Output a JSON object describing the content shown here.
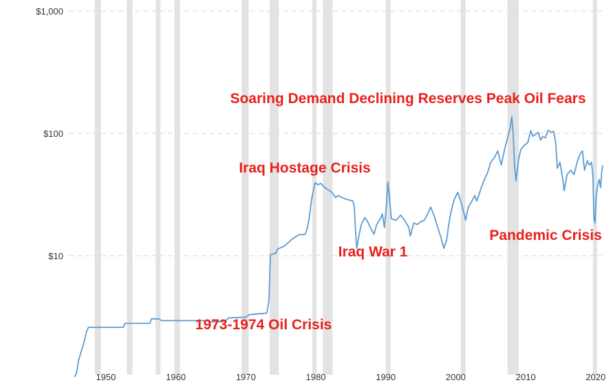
{
  "chart_data": {
    "type": "line",
    "title": "",
    "xlabel": "",
    "ylabel": "",
    "y_scale": "log",
    "ylim": [
      1,
      1000
    ],
    "xlim": [
      1945,
      2020
    ],
    "grid": true,
    "y_ticks": [
      {
        "value": 10,
        "label": "$10"
      },
      {
        "value": 100,
        "label": "$100"
      },
      {
        "value": 1000,
        "label": "$1,000"
      }
    ],
    "x_ticks": [
      1950,
      1960,
      1970,
      1980,
      1990,
      2000,
      2010,
      2020
    ],
    "colors": {
      "line": "#5b9bd5",
      "recession": "#e3e3e3",
      "annotation": "#e8201b",
      "grid": "#dddddd"
    },
    "recessions": [
      [
        1948.9,
        1949.8
      ],
      [
        1953.5,
        1954.3
      ],
      [
        1957.6,
        1958.3
      ],
      [
        1960.3,
        1961.1
      ],
      [
        1969.9,
        1970.9
      ],
      [
        1973.9,
        1975.2
      ],
      [
        1980.0,
        1980.5
      ],
      [
        1981.5,
        1982.9
      ],
      [
        1990.5,
        1991.2
      ],
      [
        2001.2,
        2001.9
      ],
      [
        2007.9,
        2009.5
      ],
      [
        2020.1,
        2020.6
      ]
    ],
    "series": [
      {
        "points": [
          [
            1946.0,
            1.02
          ],
          [
            1946.3,
            1.1
          ],
          [
            1946.6,
            1.4
          ],
          [
            1946.9,
            1.6
          ],
          [
            1947.3,
            1.9
          ],
          [
            1947.7,
            2.35
          ],
          [
            1948.0,
            2.6
          ],
          [
            1953.0,
            2.6
          ],
          [
            1953.2,
            2.8
          ],
          [
            1956.8,
            2.8
          ],
          [
            1957.0,
            3.05
          ],
          [
            1958.0,
            3.05
          ],
          [
            1958.5,
            2.95
          ],
          [
            1965.0,
            2.95
          ],
          [
            1965.5,
            2.88
          ],
          [
            1967.5,
            2.9
          ],
          [
            1968.0,
            3.1
          ],
          [
            1970.5,
            3.15
          ],
          [
            1971.0,
            3.3
          ],
          [
            1973.5,
            3.4
          ],
          [
            1973.8,
            4.3
          ],
          [
            1974.0,
            10.2
          ],
          [
            1974.8,
            10.5
          ],
          [
            1975.0,
            11.3
          ],
          [
            1976.0,
            12.0
          ],
          [
            1977.0,
            13.5
          ],
          [
            1978.0,
            14.8
          ],
          [
            1979.0,
            15.0
          ],
          [
            1979.3,
            17.0
          ],
          [
            1979.6,
            21.0
          ],
          [
            1979.9,
            29.0
          ],
          [
            1980.2,
            35.0
          ],
          [
            1980.4,
            39.5
          ],
          [
            1980.8,
            38.0
          ],
          [
            1981.2,
            39.0
          ],
          [
            1981.8,
            36.0
          ],
          [
            1982.3,
            34.5
          ],
          [
            1982.8,
            33.0
          ],
          [
            1983.3,
            30.0
          ],
          [
            1983.7,
            31.0
          ],
          [
            1984.2,
            30.0
          ],
          [
            1984.8,
            29.0
          ],
          [
            1985.3,
            28.5
          ],
          [
            1985.8,
            28.0
          ],
          [
            1986.0,
            25.0
          ],
          [
            1986.2,
            15.0
          ],
          [
            1986.35,
            11.5
          ],
          [
            1986.6,
            14.0
          ],
          [
            1987.0,
            18.0
          ],
          [
            1987.5,
            20.5
          ],
          [
            1987.9,
            19.0
          ],
          [
            1988.3,
            17.0
          ],
          [
            1988.8,
            15.0
          ],
          [
            1989.2,
            18.0
          ],
          [
            1989.7,
            20.0
          ],
          [
            1990.0,
            22.0
          ],
          [
            1990.3,
            17.0
          ],
          [
            1990.6,
            26.0
          ],
          [
            1990.8,
            40.0
          ],
          [
            1991.0,
            31.0
          ],
          [
            1991.3,
            20.0
          ],
          [
            1992.0,
            19.5
          ],
          [
            1992.6,
            21.5
          ],
          [
            1993.2,
            19.5
          ],
          [
            1993.8,
            17.0
          ],
          [
            1994.0,
            14.5
          ],
          [
            1994.5,
            18.5
          ],
          [
            1995.0,
            18.0
          ],
          [
            1995.5,
            19.0
          ],
          [
            1996.0,
            19.5
          ],
          [
            1996.5,
            22.0
          ],
          [
            1996.9,
            25.0
          ],
          [
            1997.5,
            20.5
          ],
          [
            1998.0,
            16.5
          ],
          [
            1998.4,
            14.0
          ],
          [
            1998.8,
            11.5
          ],
          [
            1999.2,
            13.5
          ],
          [
            1999.5,
            18.0
          ],
          [
            1999.9,
            24.0
          ],
          [
            2000.3,
            29.0
          ],
          [
            2000.8,
            33.0
          ],
          [
            2001.2,
            28.0
          ],
          [
            2001.7,
            22.0
          ],
          [
            2001.9,
            19.5
          ],
          [
            2002.3,
            25.0
          ],
          [
            2002.8,
            28.0
          ],
          [
            2003.2,
            31.0
          ],
          [
            2003.5,
            28.0
          ],
          [
            2004.0,
            34.0
          ],
          [
            2004.5,
            41.0
          ],
          [
            2005.0,
            47.0
          ],
          [
            2005.5,
            58.0
          ],
          [
            2006.0,
            63.0
          ],
          [
            2006.5,
            72.0
          ],
          [
            2007.0,
            55.0
          ],
          [
            2007.5,
            75.0
          ],
          [
            2007.9,
            92.0
          ],
          [
            2008.3,
            113.0
          ],
          [
            2008.5,
            137.0
          ],
          [
            2008.7,
            100.0
          ],
          [
            2008.9,
            55.0
          ],
          [
            2009.1,
            41.0
          ],
          [
            2009.5,
            62.0
          ],
          [
            2009.8,
            74.0
          ],
          [
            2010.3,
            80.0
          ],
          [
            2010.8,
            84.0
          ],
          [
            2011.2,
            105.0
          ],
          [
            2011.5,
            95.0
          ],
          [
            2011.9,
            98.0
          ],
          [
            2012.3,
            102.0
          ],
          [
            2012.6,
            88.0
          ],
          [
            2012.9,
            94.0
          ],
          [
            2013.3,
            92.0
          ],
          [
            2013.7,
            106.0
          ],
          [
            2014.2,
            102.0
          ],
          [
            2014.5,
            104.0
          ],
          [
            2014.8,
            82.0
          ],
          [
            2015.0,
            52.0
          ],
          [
            2015.4,
            58.0
          ],
          [
            2015.8,
            42.0
          ],
          [
            2016.0,
            34.0
          ],
          [
            2016.4,
            46.0
          ],
          [
            2016.9,
            50.0
          ],
          [
            2017.4,
            46.0
          ],
          [
            2017.9,
            60.0
          ],
          [
            2018.3,
            68.0
          ],
          [
            2018.6,
            72.0
          ],
          [
            2018.9,
            50.0
          ],
          [
            2019.3,
            60.0
          ],
          [
            2019.6,
            55.0
          ],
          [
            2019.9,
            58.0
          ],
          [
            2020.1,
            45.0
          ],
          [
            2020.25,
            20.0
          ],
          [
            2020.4,
            18.5
          ],
          [
            2020.55,
            30.0
          ],
          [
            2020.8,
            38.0
          ],
          [
            2021.0,
            42.0
          ],
          [
            2021.2,
            36.0
          ],
          [
            2021.35,
            48.0
          ],
          [
            2021.5,
            55.0
          ]
        ]
      }
    ],
    "annotations": [
      {
        "text": "Soaring Demand Declining Reserves Peak Oil Fears",
        "x": 2008.5,
        "y": 137
      },
      {
        "text": "Iraq Hostage Crisis",
        "x": 1980.4,
        "y": 39.5
      },
      {
        "text": "Iraq War 1",
        "x": 1990.8,
        "y": 40
      },
      {
        "text": "Pandemic Crisis",
        "x": 2020.4,
        "y": 18.5
      },
      {
        "text": "1973-1974 Oil Crisis",
        "x": 1974,
        "y": 3.4
      }
    ]
  }
}
